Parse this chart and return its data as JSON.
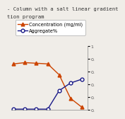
{
  "title_line1": "- Column with a salt linear gradient",
  "title_line2": "tion program",
  "legend_conc": "Concentration (mg/ml)",
  "legend_agg": "Aggregate%",
  "conc_x": [
    0,
    1,
    2,
    3,
    4,
    5,
    6
  ],
  "conc_y": [
    0.72,
    0.74,
    0.73,
    0.72,
    0.55,
    0.18,
    0.04
  ],
  "agg_x": [
    0,
    1,
    2,
    3,
    4,
    5,
    6
  ],
  "agg_y": [
    0.01,
    0.01,
    0.01,
    0.01,
    0.3,
    0.42,
    0.48
  ],
  "conc_color": "#cc4400",
  "agg_color": "#1a1a88",
  "ylim": [
    0,
    1.0
  ],
  "xlim": [
    -0.2,
    6.5
  ],
  "bg_color": "#f0ede8",
  "plot_bg": "#f0ede8",
  "title_fontsize": 5.2,
  "legend_fontsize": 4.8,
  "tick_fontsize": 4.5,
  "marker_size": 3.5,
  "line_width": 1.0,
  "yticks": [
    0.0,
    0.2,
    0.4,
    0.6,
    0.8,
    1.0
  ],
  "ytick_labels": [
    "0.",
    "0.",
    "0.",
    "0.",
    "0.",
    "1"
  ]
}
